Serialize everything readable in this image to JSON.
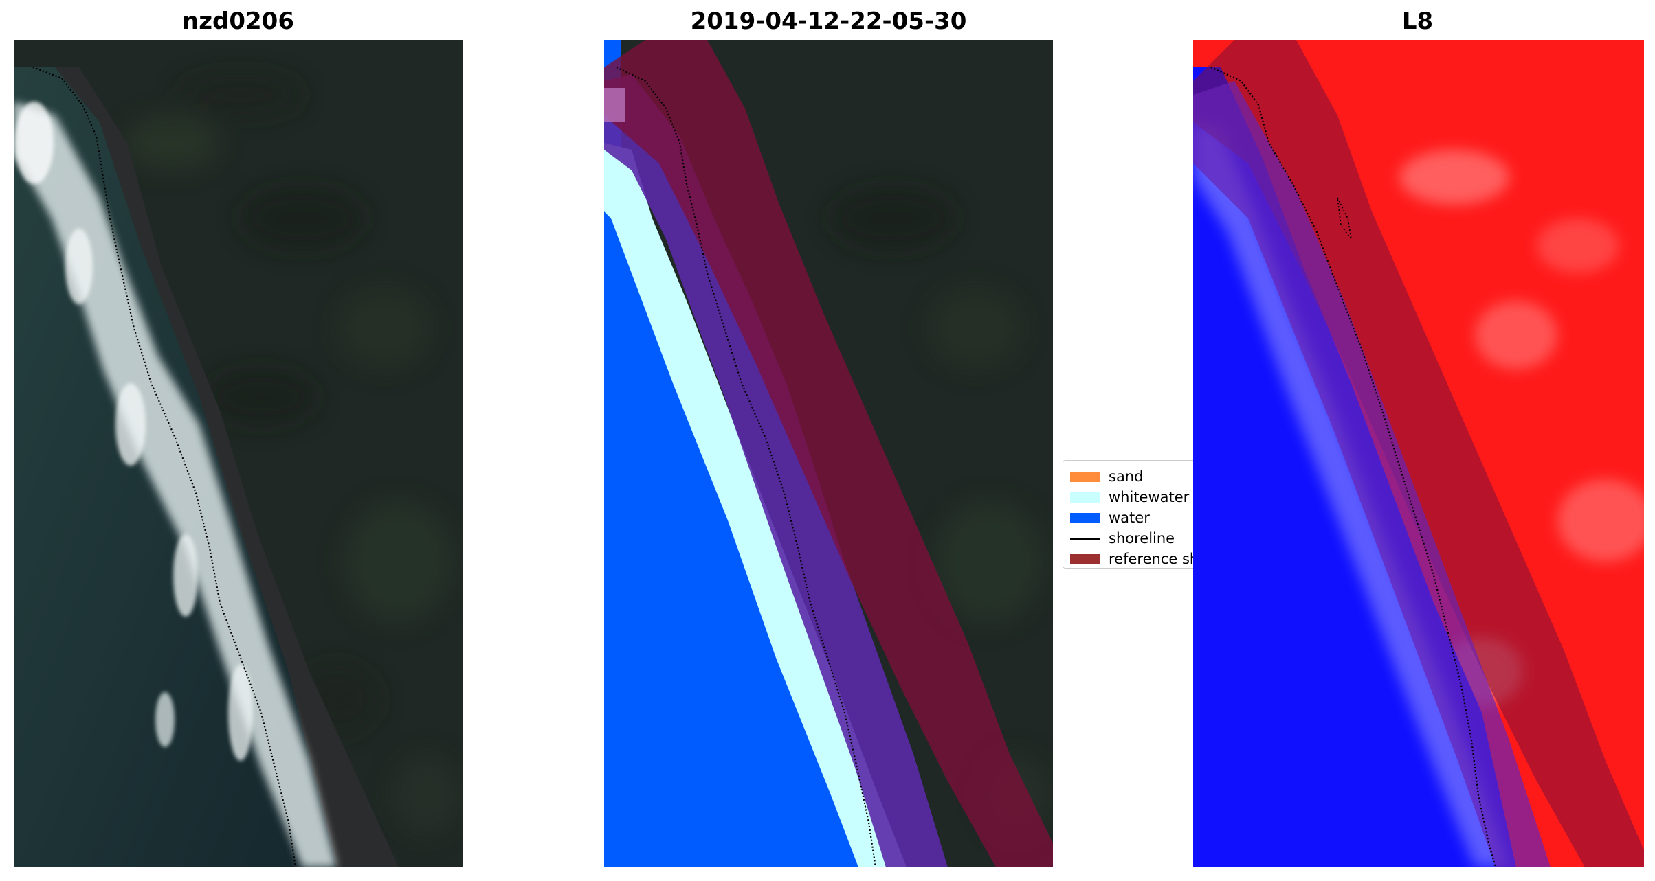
{
  "panels": {
    "rgb": {
      "title": "nzd0206"
    },
    "classification": {
      "title": "2019-04-12-22-05-30"
    },
    "index": {
      "title": "L8"
    }
  },
  "legend": {
    "items": [
      {
        "label": "sand",
        "color": "#ff8c3a",
        "kind": "patch"
      },
      {
        "label": "whitewater",
        "color": "#c9ffff",
        "kind": "patch"
      },
      {
        "label": "water",
        "color": "#005cff",
        "kind": "patch"
      },
      {
        "label": "shoreline",
        "color": "#000000",
        "kind": "line"
      },
      {
        "label": "reference shoreline buffer",
        "color": "#9c2f2f",
        "kind": "patch"
      }
    ]
  },
  "colors": {
    "land": "#1f2a25",
    "ocean": "#20363a",
    "surf": "#e9f1f1",
    "beach": "#2c2d2e",
    "buffer": "#7c103a",
    "buffer_opacity": 0.78,
    "water_class": "#005cff",
    "whitewater_class": "#c9ffff",
    "index_land": "#ff1a1a",
    "index_water": "#1010ff"
  }
}
